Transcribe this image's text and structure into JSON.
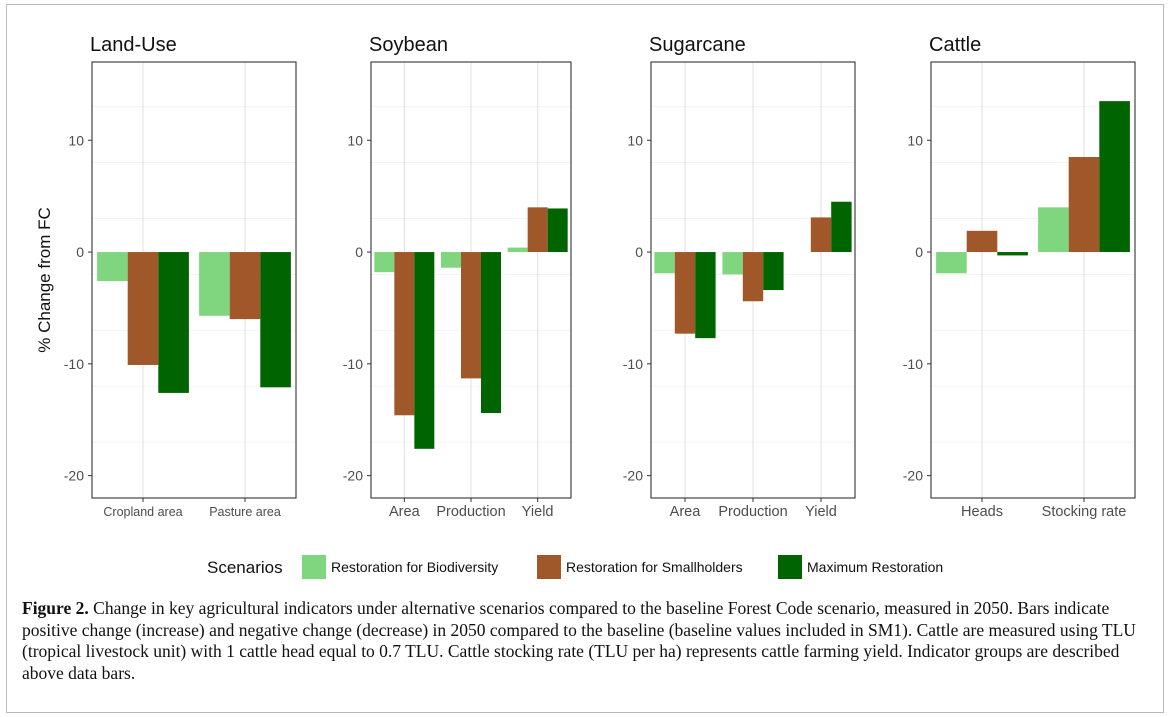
{
  "chart_data": [
    {
      "type": "bar",
      "title": "Land-Use",
      "categories": [
        "Cropland area",
        "Pasture area"
      ],
      "series": [
        {
          "name": "Restoration for Biodiversity",
          "values": [
            -2.6,
            -5.7
          ]
        },
        {
          "name": "Restoration for Smallholders",
          "values": [
            -10.1,
            -6.0
          ]
        },
        {
          "name": "Maximum Restoration",
          "values": [
            -12.6,
            -12.1
          ]
        }
      ],
      "ylabel": "% Change from FC",
      "ylim": [
        -22,
        17
      ],
      "yticks": [
        -20,
        -10,
        0,
        10
      ],
      "grid": true
    },
    {
      "type": "bar",
      "title": "Soybean",
      "categories": [
        "Area",
        "Production",
        "Yield"
      ],
      "series": [
        {
          "name": "Restoration for Biodiversity",
          "values": [
            -1.8,
            -1.4,
            0.4
          ]
        },
        {
          "name": "Restoration for Smallholders",
          "values": [
            -14.6,
            -11.3,
            4.0
          ]
        },
        {
          "name": "Maximum Restoration",
          "values": [
            -17.6,
            -14.4,
            3.9
          ]
        }
      ],
      "ylim": [
        -22,
        17
      ],
      "yticks": [
        -20,
        -10,
        0,
        10
      ],
      "grid": true
    },
    {
      "type": "bar",
      "title": "Sugarcane",
      "categories": [
        "Area",
        "Production",
        "Yield"
      ],
      "series": [
        {
          "name": "Restoration for Biodiversity",
          "values": [
            -1.9,
            -2.0,
            0
          ]
        },
        {
          "name": "Restoration for Smallholders",
          "values": [
            -7.3,
            -4.4,
            3.1
          ]
        },
        {
          "name": "Maximum Restoration",
          "values": [
            -7.7,
            -3.4,
            4.5
          ]
        }
      ],
      "ylim": [
        -22,
        17
      ],
      "yticks": [
        -20,
        -10,
        0,
        10
      ],
      "grid": true
    },
    {
      "type": "bar",
      "title": "Cattle",
      "categories": [
        "Heads",
        "Stocking rate"
      ],
      "series": [
        {
          "name": "Restoration for Biodiversity",
          "values": [
            -1.9,
            4.0
          ]
        },
        {
          "name": "Restoration for Smallholders",
          "values": [
            1.9,
            8.5
          ]
        },
        {
          "name": "Maximum Restoration",
          "values": [
            -0.3,
            13.5
          ]
        }
      ],
      "ylim": [
        -22,
        17
      ],
      "yticks": [
        -20,
        -10,
        0,
        10
      ],
      "grid": true
    }
  ],
  "legend": {
    "title": "Scenarios",
    "placement": "bottom",
    "items": [
      {
        "label": "Restoration for Biodiversity",
        "color": "#7fd67f"
      },
      {
        "label": "Restoration for Smallholders",
        "color": "#a0582b"
      },
      {
        "label": "Maximum Restoration",
        "color": "#006400"
      }
    ]
  },
  "caption": {
    "label": "Figure 2.",
    "text": " Change in key agricultural indicators under alternative scenarios compared to the baseline Forest Code scenario, measured in 2050. Bars indicate positive change (increase) and negative change (decrease) in 2050 compared to the baseline (baseline values included in SM1). Cattle are measured using TLU (tropical livestock unit) with 1 cattle head equal to 0.7 TLU. Cattle stocking rate (TLU per ha) represents cattle farming yield. Indicator groups are described above data bars."
  }
}
